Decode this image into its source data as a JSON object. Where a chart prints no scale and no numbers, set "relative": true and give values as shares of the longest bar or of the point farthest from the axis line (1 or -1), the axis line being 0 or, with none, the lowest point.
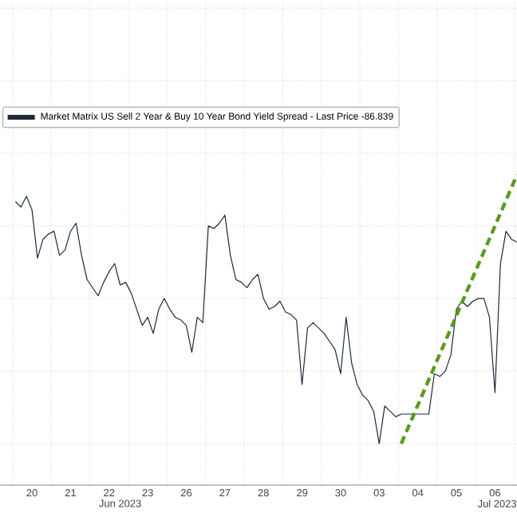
{
  "chart_data": {
    "type": "line",
    "relative": true,
    "grid": true,
    "legend": "top left",
    "marker": "none",
    "categories": [
      null,
      null,
      null,
      "20",
      null,
      null,
      null,
      null,
      null,
      null,
      "21",
      null,
      null,
      null,
      null,
      null,
      null,
      "22",
      null,
      null,
      null,
      null,
      null,
      null,
      "23",
      null,
      null,
      null,
      null,
      null,
      null,
      "26",
      null,
      null,
      null,
      null,
      null,
      null,
      "27",
      null,
      null,
      null,
      null,
      null,
      null,
      "28",
      null,
      null,
      null,
      null,
      null,
      null,
      "29",
      null,
      null,
      null,
      null,
      null,
      null,
      "30",
      null,
      null,
      null,
      null,
      null,
      null,
      "03",
      null,
      null,
      null,
      null,
      null,
      null,
      "04",
      null,
      null,
      null,
      null,
      null,
      null,
      "05",
      null,
      null,
      null,
      null,
      null,
      null,
      "06",
      null,
      null,
      null,
      null
    ],
    "annotations": [
      "Jun 2023",
      "Jul 2023"
    ],
    "series": [
      {
        "name": "Market Matrix US Sell 2 Year & Buy 10 Year Bond Yield Spread - Last Price -86.839",
        "color": "#1c2a3a",
        "line_style": "solid",
        "values": [
          0.9,
          0.88,
          0.92,
          0.87,
          0.69,
          0.76,
          0.78,
          0.79,
          0.7,
          0.72,
          0.79,
          0.82,
          0.7,
          0.61,
          0.58,
          0.55,
          0.6,
          0.64,
          0.67,
          0.59,
          0.6,
          0.56,
          0.5,
          0.44,
          0.47,
          0.41,
          0.5,
          0.54,
          0.5,
          0.47,
          0.46,
          0.44,
          0.34,
          0.47,
          0.45,
          0.81,
          0.8,
          0.82,
          0.85,
          0.7,
          0.61,
          0.6,
          0.58,
          0.61,
          0.63,
          0.54,
          0.5,
          0.51,
          0.53,
          0.49,
          0.48,
          0.46,
          0.22,
          0.43,
          0.45,
          0.43,
          0.41,
          0.38,
          0.35,
          0.26,
          0.47,
          0.3,
          0.22,
          0.18,
          0.16,
          0.12,
          0.0,
          0.14,
          0.12,
          0.1,
          0.11,
          0.11,
          0.11,
          0.11,
          0.11,
          0.11,
          0.26,
          0.25,
          0.27,
          0.33,
          0.5,
          0.53,
          0.51,
          0.53,
          0.54,
          0.54,
          0.47,
          0.19,
          0.67,
          0.79,
          0.76,
          0.75
        ]
      },
      {
        "type": "line",
        "color": "#5b9a1f",
        "line_style": "dashed",
        "values": [
          null,
          null,
          null,
          null,
          null,
          null,
          null,
          null,
          null,
          null,
          null,
          null,
          null,
          null,
          null,
          null,
          null,
          null,
          null,
          null,
          null,
          null,
          null,
          null,
          null,
          null,
          null,
          null,
          null,
          null,
          null,
          null,
          null,
          null,
          null,
          null,
          null,
          null,
          null,
          null,
          null,
          null,
          null,
          null,
          null,
          null,
          null,
          null,
          null,
          null,
          null,
          null,
          null,
          null,
          null,
          null,
          null,
          null,
          null,
          null,
          null,
          null,
          null,
          null,
          null,
          null,
          null,
          null,
          null,
          null,
          0.0,
          null,
          null,
          null,
          null,
          null,
          null,
          null,
          null,
          null,
          null,
          null,
          null,
          null,
          null,
          null,
          null,
          null,
          null,
          null,
          null,
          1.0
        ]
      }
    ]
  }
}
